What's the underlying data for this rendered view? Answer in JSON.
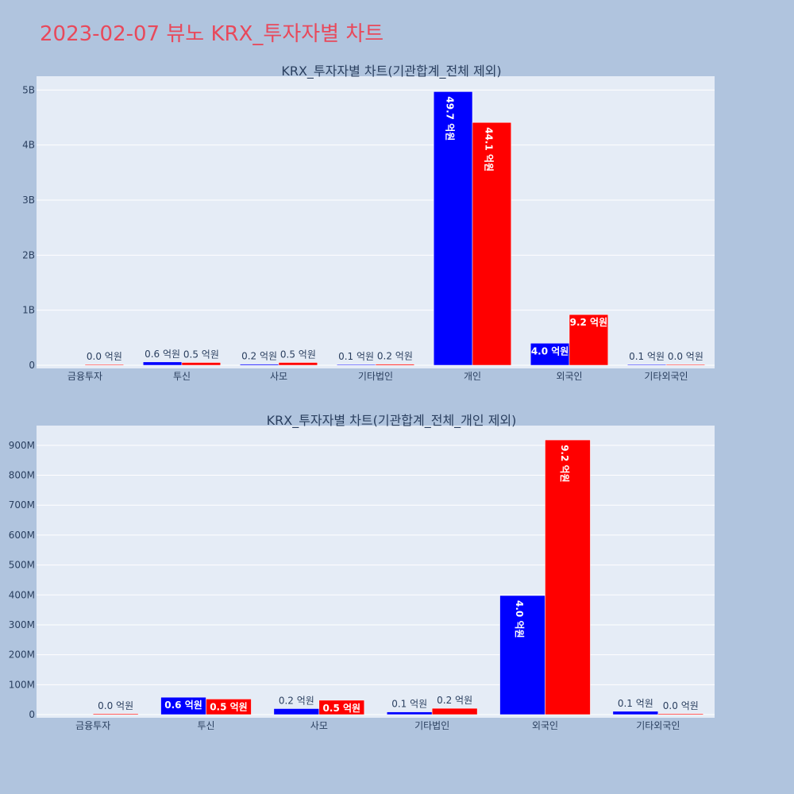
{
  "page": {
    "title": "2023-02-07 뷰노 KRX_투자자별 차트"
  },
  "colors": {
    "series_a": "#0000ff",
    "series_b": "#ff0000",
    "plot_bg": "#e5ecf6",
    "page_bg": "#b0c4de",
    "title": "#e8495b"
  },
  "chart_data": [
    {
      "type": "bar",
      "title": "KRX_투자자별 차트(기관합계_전체 제외)",
      "categories": [
        "금융투자",
        "투신",
        "사모",
        "기타법인",
        "개인",
        "외국인",
        "기타외국인"
      ],
      "series": [
        {
          "values": [
            0,
            60000000,
            20000000,
            10000000,
            4970000000,
            400000000,
            10000000
          ],
          "labels": [
            "",
            "0.6 억원",
            "0.2 억원",
            "0.1 억원",
            "49.7 억원",
            "4.0 억원",
            "0.1 억원"
          ]
        },
        {
          "values": [
            3000000,
            50000000,
            50000000,
            20000000,
            4410000000,
            920000000,
            3000000
          ],
          "labels": [
            "0.0 억원",
            "0.5 억원",
            "0.5 억원",
            "0.2 억원",
            "44.1 억원",
            "9.2 억원",
            "0.0 억원"
          ]
        }
      ],
      "ylim": [
        0,
        5250000000
      ],
      "yticks": [
        0,
        1000000000,
        2000000000,
        3000000000,
        4000000000,
        5000000000
      ],
      "yticklabels": [
        "0",
        "1B",
        "2B",
        "3B",
        "4B",
        "5B"
      ],
      "grid": true
    },
    {
      "type": "bar",
      "title": "KRX_투자자별 차트(기관합계_전체_개인 제외)",
      "categories": [
        "금융투자",
        "투신",
        "사모",
        "기타법인",
        "외국인",
        "기타외국인"
      ],
      "series": [
        {
          "values": [
            0,
            58000000,
            20000000,
            9000000,
            398000000,
            11000000
          ],
          "labels": [
            "",
            "0.6 억원",
            "0.2 억원",
            "0.1 억원",
            "4.0 억원",
            "0.1 억원"
          ]
        },
        {
          "values": [
            3000000,
            52000000,
            48000000,
            21000000,
            918000000,
            3000000
          ],
          "labels": [
            "0.0 억원",
            "0.5 억원",
            "0.5 억원",
            "0.2 억원",
            "9.2 억원",
            "0.0 억원"
          ]
        }
      ],
      "ylim": [
        0,
        966000000
      ],
      "yticks": [
        0,
        100000000,
        200000000,
        300000000,
        400000000,
        500000000,
        600000000,
        700000000,
        800000000,
        900000000
      ],
      "yticklabels": [
        "0",
        "100M",
        "200M",
        "300M",
        "400M",
        "500M",
        "600M",
        "700M",
        "800M",
        "900M"
      ],
      "grid": true
    }
  ]
}
